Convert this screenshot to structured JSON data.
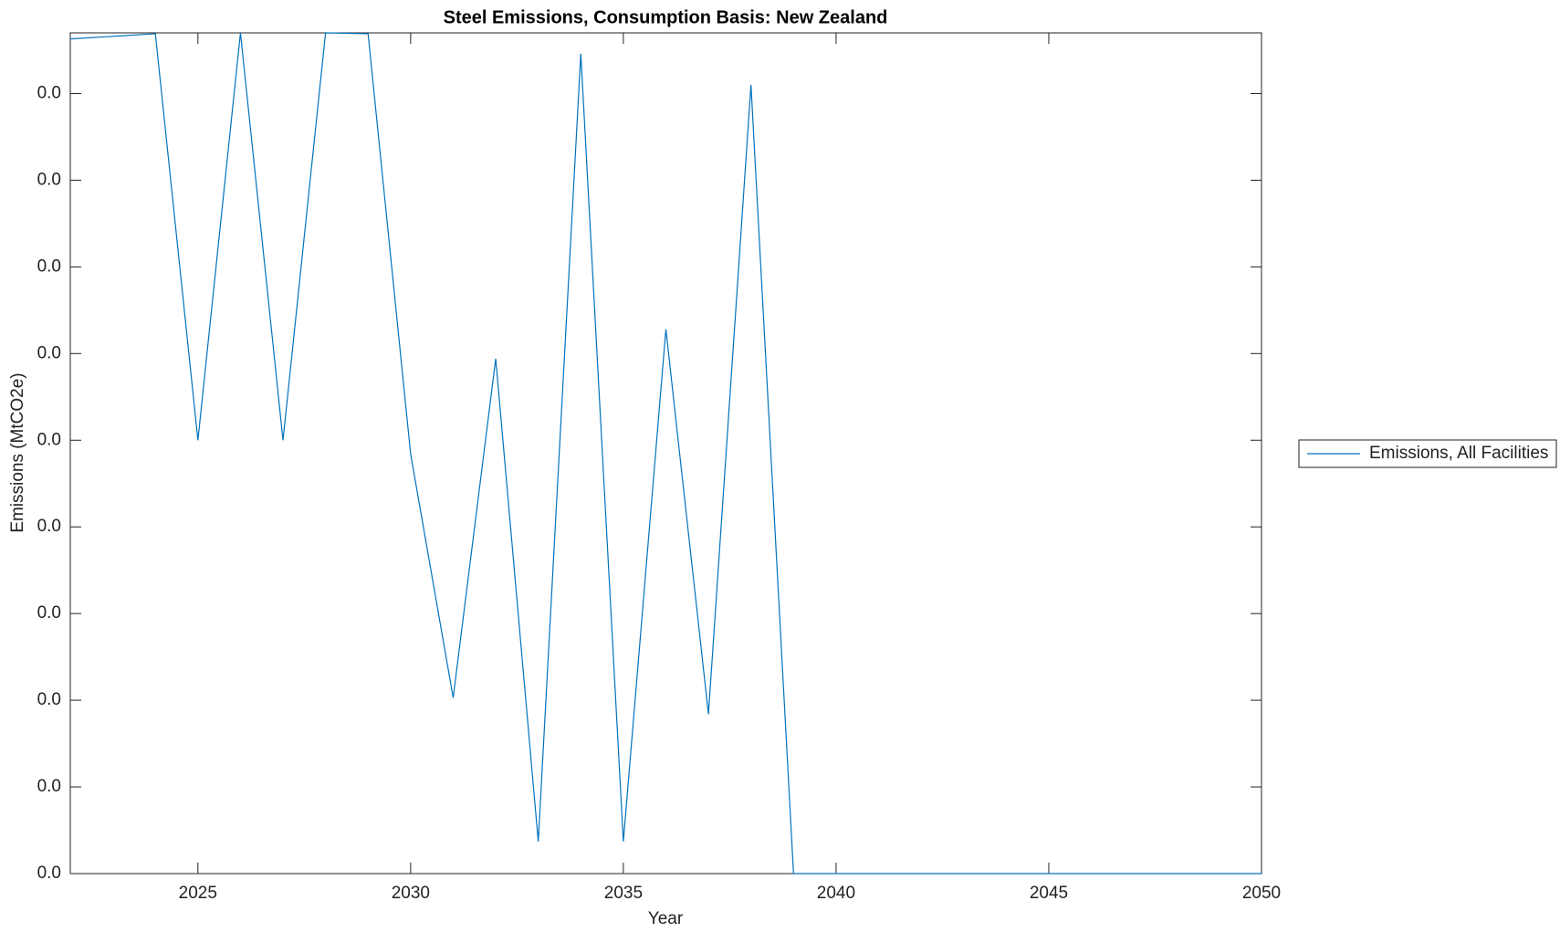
{
  "chart_data": {
    "type": "line",
    "title": "Steel Emissions, Consumption Basis: New Zealand",
    "x_label": "Year",
    "y_label": "Emissions (MtCO2e)",
    "x": [
      2022,
      2023,
      2024,
      2025,
      2026,
      2027,
      2028,
      2029,
      2030,
      2031,
      2032,
      2033,
      2034,
      2035,
      2036,
      2037,
      2038,
      2039,
      2040,
      2041,
      2042,
      2043,
      2044,
      2045,
      2046,
      2047,
      2048,
      2049,
      2050
    ],
    "series": [
      {
        "name": "Emissions, All Facilities",
        "color": "#0072bd",
        "values": [
          0.00963,
          0.00966,
          0.00969,
          0.005,
          0.0097,
          0.005,
          0.0097,
          0.00969,
          0.00484,
          0.00203,
          0.00594,
          0.00037,
          0.00946,
          0.00037,
          0.00628,
          0.00184,
          0.0091,
          0,
          0,
          0,
          0,
          0,
          0,
          0,
          0,
          0,
          0,
          0,
          0
        ]
      }
    ],
    "xlim": [
      2022,
      2050
    ],
    "xticks": [
      2025,
      2030,
      2035,
      2040,
      2045,
      2050
    ],
    "ylim": [
      0,
      0.0097
    ],
    "yticks": [
      {
        "value": 0,
        "label": "0.0"
      },
      {
        "value": 0.001,
        "label": "0.0"
      },
      {
        "value": 0.002,
        "label": "0.0"
      },
      {
        "value": 0.003,
        "label": "0.0"
      },
      {
        "value": 0.004,
        "label": "0.0"
      },
      {
        "value": 0.005,
        "label": "0.0"
      },
      {
        "value": 0.006,
        "label": "0.0"
      },
      {
        "value": 0.007,
        "label": "0.0"
      },
      {
        "value": 0.008,
        "label": "0.0"
      },
      {
        "value": 0.009,
        "label": "0.0"
      }
    ],
    "grid": false,
    "legend_position": "right"
  }
}
